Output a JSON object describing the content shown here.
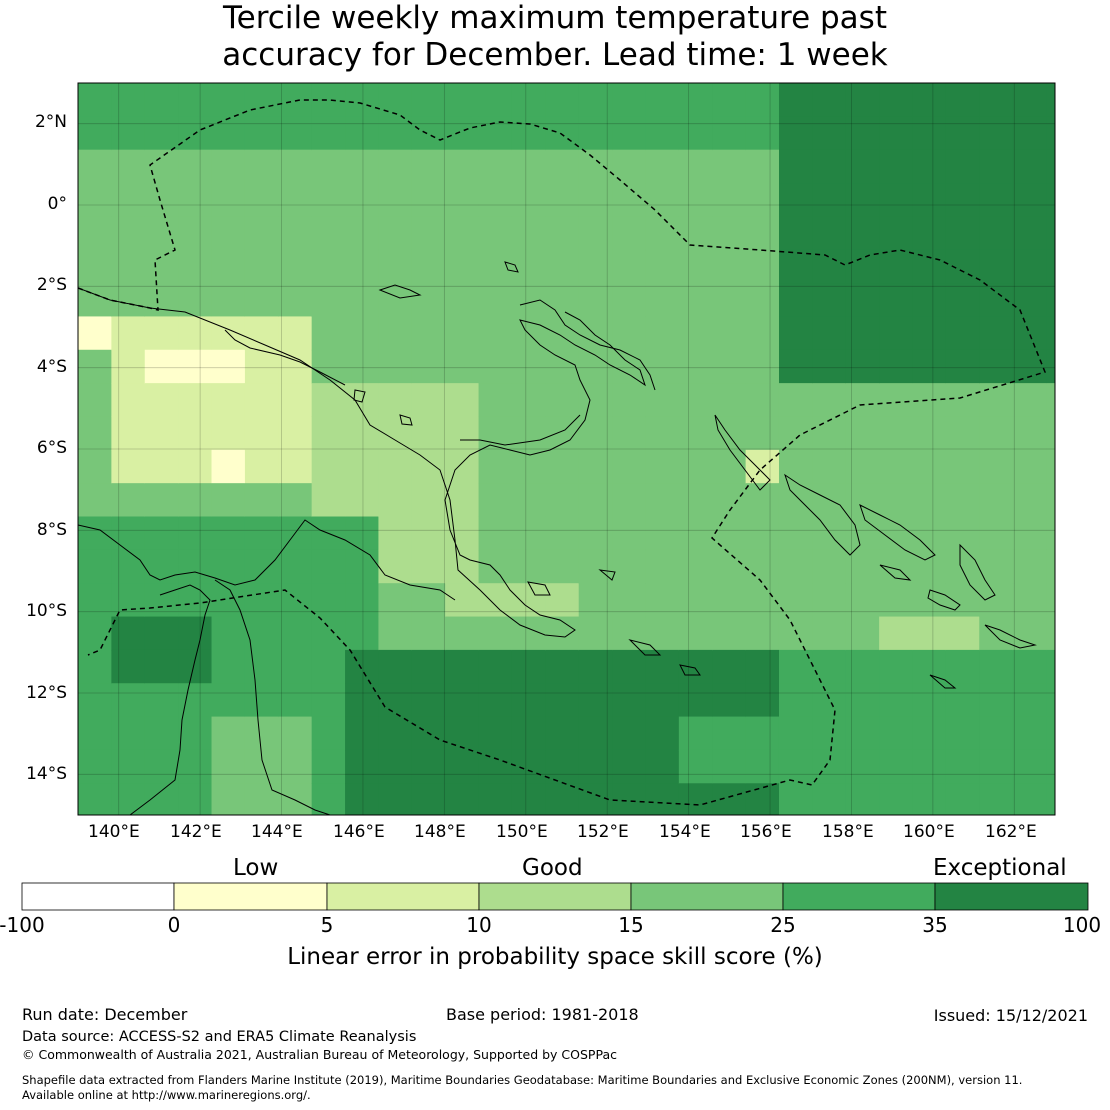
{
  "title_line1": "Tercile weekly maximum temperature past",
  "title_line2": "accuracy for December. Lead time: 1 week",
  "map": {
    "lon_labels": [
      "140°E",
      "142°E",
      "144°E",
      "146°E",
      "148°E",
      "150°E",
      "152°E",
      "154°E",
      "156°E",
      "158°E",
      "160°E",
      "162°E"
    ],
    "lat_labels": [
      "2°N",
      "0°",
      "2°S",
      "4°S",
      "6°S",
      "8°S",
      "10°S",
      "12°S",
      "14°S"
    ],
    "lon_range": [
      139,
      163
    ],
    "lat_range": [
      -15,
      3
    ]
  },
  "colorbar": {
    "category_low": "Low",
    "category_good": "Good",
    "category_exceptional": "Exceptional",
    "tick_labels": [
      "-100",
      "0",
      "5",
      "10",
      "15",
      "25",
      "35",
      "100"
    ],
    "colors": [
      "#ffffff",
      "#ffffcc",
      "#d9f0a3",
      "#addd8e",
      "#78c679",
      "#41ab5d",
      "#238443"
    ],
    "title": "Linear error in probability space skill score (%)"
  },
  "footer": {
    "run_date": "Run date: December",
    "base_period": "Base period: 1981-2018",
    "issued": "Issued: 15/12/2021",
    "data_source": "Data source: ACCESS-S2 and ERA5 Climate Reanalysis",
    "copyright": "© Commonwealth of Australia 2021, Australian Bureau of Meteorology, Supported by COSPPac",
    "shapefile_line1": "Shapefile data extracted from Flanders Marine Institute (2019), Maritime Boundaries Geodatabase: Maritime Boundaries and Exclusive Economic Zones (200NM), version 11.",
    "shapefile_line2": "Available online at http://www.marineregions.org/."
  }
}
